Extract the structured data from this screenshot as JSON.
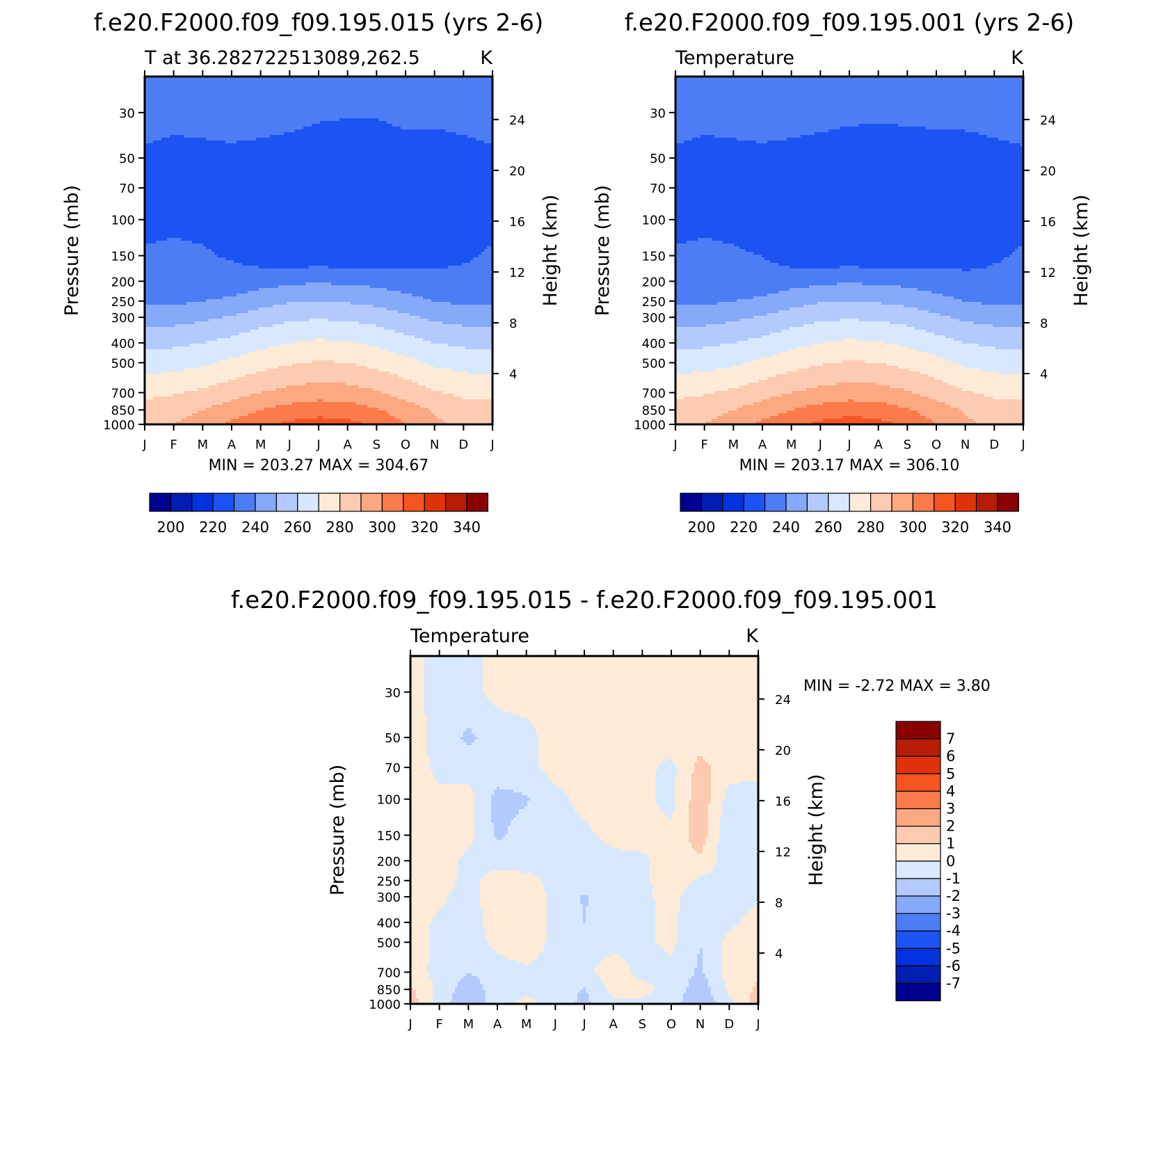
{
  "panels": [
    {
      "id": "p1",
      "title": "f.e20.F2000.f09_f09.195.015 (yrs 2-6)",
      "left_string": "T at 36.282722513089,262.5",
      "right_string": "K",
      "stats": "MIN = 203.27  MAX = 304.67",
      "show_left_axis": true,
      "show_right_axis": true
    },
    {
      "id": "p2",
      "title": "f.e20.F2000.f09_f09.195.001 (yrs 2-6)",
      "left_string": "Temperature",
      "right_string": "K",
      "stats": "MIN = 203.17  MAX = 306.10",
      "show_left_axis": true,
      "show_right_axis": true
    },
    {
      "id": "p3",
      "title": "f.e20.F2000.f09_f09.195.015 - f.e20.F2000.f09_f09.195.001",
      "left_string": "Temperature",
      "right_string": "K",
      "stats": "MIN =   -2.72 MAX =    3.80",
      "show_left_axis": true,
      "show_right_axis": true
    }
  ],
  "axes": {
    "ylabel": "Pressure (mb)",
    "y2label": "Height (km)",
    "pressure_ticks": [
      30,
      50,
      70,
      100,
      150,
      200,
      250,
      300,
      400,
      500,
      700,
      850,
      1000
    ],
    "height_ticks": [
      24,
      20,
      16,
      12,
      8,
      4
    ],
    "months": [
      "J",
      "F",
      "M",
      "A",
      "M",
      "J",
      "J",
      "A",
      "S",
      "O",
      "N",
      "D",
      "J"
    ]
  },
  "colorbars": {
    "abs": {
      "labels": [
        "200",
        "220",
        "240",
        "260",
        "280",
        "300",
        "320",
        "340"
      ],
      "colors": [
        "#000090",
        "#001fb0",
        "#0033dd",
        "#1c53f2",
        "#4c7df5",
        "#86a9fa",
        "#b4caff",
        "#d8e9ff",
        "#fdebd8",
        "#fdcbb1",
        "#fba883",
        "#fb7b4b",
        "#f5551e",
        "#de3308",
        "#b51d04",
        "#880000"
      ]
    },
    "diff": {
      "labels": [
        "7",
        "6",
        "5",
        "4",
        "3",
        "2",
        "1",
        "0",
        "-1",
        "-2",
        "-3",
        "-4",
        "-5",
        "-6",
        "-7"
      ],
      "colors": [
        "#880000",
        "#b51d04",
        "#de3308",
        "#f5551e",
        "#fb7b4b",
        "#fba883",
        "#fdcbb1",
        "#fdebd8",
        "#d8e9ff",
        "#b4caff",
        "#86a9fa",
        "#4c7df5",
        "#1c53f2",
        "#0033dd",
        "#001fb0",
        "#000090"
      ]
    }
  },
  "chart_data": [
    {
      "type": "heatmap",
      "title": "f.e20.F2000.f09_f09.195.015 (yrs 2-6)",
      "subtitle": "T at 36.282722513089,262.5",
      "units": "K",
      "xlabel": "",
      "ylabel": "Pressure (mb)",
      "y2label": "Height (km)",
      "x": [
        "J",
        "F",
        "M",
        "A",
        "M",
        "J",
        "J",
        "A",
        "S",
        "O",
        "N",
        "D",
        "J"
      ],
      "y": [
        1000,
        850,
        700,
        500,
        400,
        300,
        250,
        200,
        150,
        100,
        70,
        50,
        30
      ],
      "ylim": [
        1000,
        20
      ],
      "scale": "log",
      "min": 203.27,
      "max": 304.67,
      "values": [
        [
          276,
          280,
          285,
          292,
          298,
          302,
          304,
          303,
          298,
          290,
          282,
          277,
          276
        ],
        [
          273,
          276,
          280,
          285,
          290,
          294,
          296,
          295,
          291,
          285,
          279,
          274,
          273
        ],
        [
          268,
          269,
          272,
          276,
          280,
          283,
          285,
          284,
          281,
          276,
          271,
          268,
          268
        ],
        [
          255,
          256,
          258,
          262,
          266,
          269,
          271,
          270,
          267,
          263,
          258,
          256,
          255
        ],
        [
          247,
          248,
          250,
          253,
          257,
          260,
          262,
          261,
          258,
          254,
          250,
          248,
          247
        ],
        [
          235,
          236,
          238,
          241,
          245,
          248,
          249,
          248,
          246,
          242,
          238,
          236,
          235
        ],
        [
          228,
          228,
          230,
          232,
          236,
          239,
          240,
          239,
          237,
          233,
          230,
          228,
          228
        ],
        [
          222,
          222,
          223,
          224,
          226,
          228,
          229,
          228,
          227,
          225,
          223,
          222,
          222
        ],
        [
          221,
          221,
          221,
          219,
          215,
          213,
          213,
          213,
          214,
          215,
          217,
          219,
          221
        ],
        [
          218,
          219,
          218,
          215,
          213,
          212,
          211,
          211,
          212,
          212,
          213,
          215,
          218
        ],
        [
          214,
          214,
          214,
          213,
          212,
          211,
          211,
          211,
          211,
          211,
          212,
          213,
          214
        ],
        [
          218,
          216,
          217,
          218,
          217,
          215,
          213,
          213,
          213,
          213,
          213,
          216,
          218
        ],
        [
          225,
          224,
          224,
          224,
          224,
          224,
          222,
          221,
          221,
          224,
          224,
          224,
          225
        ]
      ]
    },
    {
      "type": "heatmap",
      "title": "f.e20.F2000.f09_f09.195.001 (yrs 2-6)",
      "subtitle": "Temperature",
      "units": "K",
      "xlabel": "",
      "ylabel": "Pressure (mb)",
      "y2label": "Height (km)",
      "x": [
        "J",
        "F",
        "M",
        "A",
        "M",
        "J",
        "J",
        "A",
        "S",
        "O",
        "N",
        "D",
        "J"
      ],
      "y": [
        1000,
        850,
        700,
        500,
        400,
        300,
        250,
        200,
        150,
        100,
        70,
        50,
        30
      ],
      "ylim": [
        1000,
        20
      ],
      "scale": "log",
      "min": 203.17,
      "max": 306.1,
      "values": [
        [
          276,
          280,
          285,
          292,
          298,
          302,
          305,
          303,
          298,
          290,
          282,
          277,
          276
        ],
        [
          273,
          276,
          280,
          285,
          290,
          294,
          296,
          295,
          291,
          285,
          279,
          274,
          273
        ],
        [
          268,
          269,
          272,
          276,
          280,
          283,
          285,
          284,
          281,
          276,
          271,
          268,
          268
        ],
        [
          255,
          256,
          258,
          262,
          266,
          269,
          271,
          270,
          267,
          263,
          258,
          256,
          255
        ],
        [
          247,
          248,
          250,
          253,
          257,
          260,
          262,
          261,
          258,
          254,
          250,
          248,
          247
        ],
        [
          235,
          236,
          238,
          241,
          245,
          248,
          249,
          248,
          246,
          242,
          238,
          236,
          235
        ],
        [
          228,
          228,
          230,
          232,
          236,
          239,
          240,
          239,
          237,
          233,
          230,
          228,
          228
        ],
        [
          222,
          222,
          223,
          224,
          226,
          228,
          229,
          228,
          227,
          225,
          223,
          222,
          222
        ],
        [
          221,
          221,
          221,
          220,
          215,
          213,
          213,
          213,
          214,
          215,
          216,
          219,
          221
        ],
        [
          218,
          219,
          218,
          215,
          213,
          212,
          211,
          211,
          212,
          212,
          213,
          215,
          218
        ],
        [
          214,
          214,
          214,
          213,
          212,
          211,
          211,
          211,
          211,
          211,
          212,
          213,
          214
        ],
        [
          218,
          216,
          217,
          218,
          217,
          215,
          213,
          213,
          213,
          213,
          214,
          217,
          218
        ],
        [
          225,
          224,
          224,
          224,
          224,
          224,
          223,
          222,
          223,
          224,
          224,
          224,
          225
        ]
      ]
    },
    {
      "type": "heatmap",
      "title": "f.e20.F2000.f09_f09.195.015 - f.e20.F2000.f09_f09.195.001",
      "subtitle": "Temperature",
      "units": "K",
      "xlabel": "",
      "ylabel": "Pressure (mb)",
      "y2label": "Height (km)",
      "x": [
        "J",
        "F",
        "M",
        "A",
        "M",
        "J",
        "J",
        "A",
        "S",
        "O",
        "N",
        "D",
        "J"
      ],
      "y": [
        1000,
        850,
        700,
        500,
        400,
        300,
        250,
        200,
        150,
        100,
        70,
        50,
        30
      ],
      "ylim": [
        1000,
        20
      ],
      "scale": "log",
      "min": -2.72,
      "max": 3.8,
      "values": [
        [
          1.6,
          -0.6,
          -1.8,
          -0.4,
          0.3,
          -0.6,
          -1.2,
          -0.3,
          -0.2,
          -0.5,
          -2.0,
          -0.3,
          1.6
        ],
        [
          1.2,
          -0.3,
          -1.6,
          -0.5,
          -0.3,
          -0.4,
          -1.1,
          0.4,
          0.3,
          -0.4,
          -1.6,
          0.2,
          1.2
        ],
        [
          0.4,
          -0.3,
          -1.0,
          -0.5,
          -0.2,
          -0.3,
          -0.2,
          0.5,
          -0.3,
          -0.2,
          -1.2,
          0.4,
          0.8
        ],
        [
          0.5,
          -0.2,
          -0.6,
          0.3,
          0.6,
          -0.3,
          -0.4,
          -0.3,
          -0.2,
          0.2,
          -1.0,
          0.3,
          0.6
        ],
        [
          0.5,
          -0.2,
          -0.5,
          0.5,
          0.6,
          -0.3,
          -1.0,
          -0.3,
          -0.2,
          0.3,
          -1.0,
          -0.2,
          0.3
        ],
        [
          0.5,
          0.2,
          -0.4,
          0.6,
          0.7,
          -0.3,
          -1.1,
          -0.4,
          -0.2,
          0.3,
          -0.6,
          -0.3,
          -0.1
        ],
        [
          0.4,
          0.4,
          -0.3,
          0.4,
          0.3,
          -0.3,
          -0.4,
          -0.3,
          -0.2,
          0.5,
          -0.2,
          -0.3,
          -0.2
        ],
        [
          0.3,
          0.6,
          -0.3,
          -0.3,
          -0.4,
          -0.3,
          -0.3,
          -0.3,
          -0.2,
          0.6,
          0.8,
          -0.6,
          -0.3
        ],
        [
          0.2,
          0.5,
          0.3,
          -1.2,
          -0.5,
          -0.4,
          -0.2,
          0.3,
          0.4,
          0.2,
          1.6,
          -1.0,
          -0.3
        ],
        [
          0.5,
          0.3,
          0.4,
          -1.4,
          -1.1,
          -0.3,
          0.3,
          0.5,
          0.2,
          -0.3,
          1.7,
          -0.4,
          -0.3
        ],
        [
          0.6,
          -0.3,
          -0.5,
          -0.3,
          -0.3,
          0.4,
          0.5,
          0.3,
          0.3,
          -0.3,
          1.4,
          0.4,
          0.2
        ],
        [
          0.5,
          -0.4,
          -1.2,
          -0.5,
          -0.3,
          0.4,
          0.5,
          0.5,
          0.5,
          0.6,
          0.4,
          0.4,
          0.5
        ],
        [
          0.4,
          -0.4,
          -0.3,
          0.3,
          0.4,
          0.4,
          0.4,
          0.4,
          0.4,
          0.3,
          0.4,
          0.4,
          0.4
        ]
      ]
    }
  ]
}
